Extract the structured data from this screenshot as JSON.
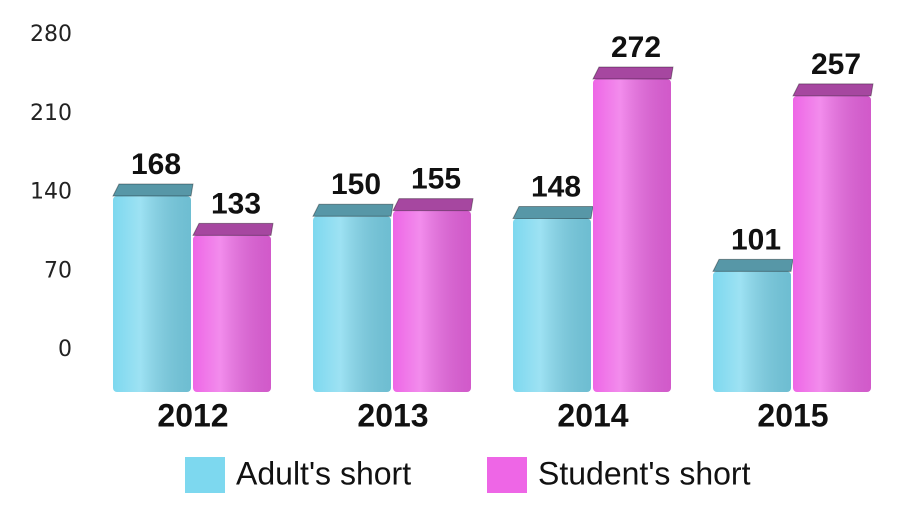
{
  "chart_data": {
    "type": "bar",
    "categories": [
      "2012",
      "2013",
      "2014",
      "2015"
    ],
    "series": [
      {
        "name": "Adult's short",
        "color": "#7dd8ef",
        "values": [
          168,
          150,
          148,
          101
        ]
      },
      {
        "name": "Student's short",
        "color": "#ee66e6",
        "values": [
          133,
          155,
          272,
          257
        ]
      }
    ],
    "ylim": [
      0,
      280
    ],
    "yticks": [
      0,
      70,
      140,
      210,
      280
    ],
    "grid": false
  }
}
